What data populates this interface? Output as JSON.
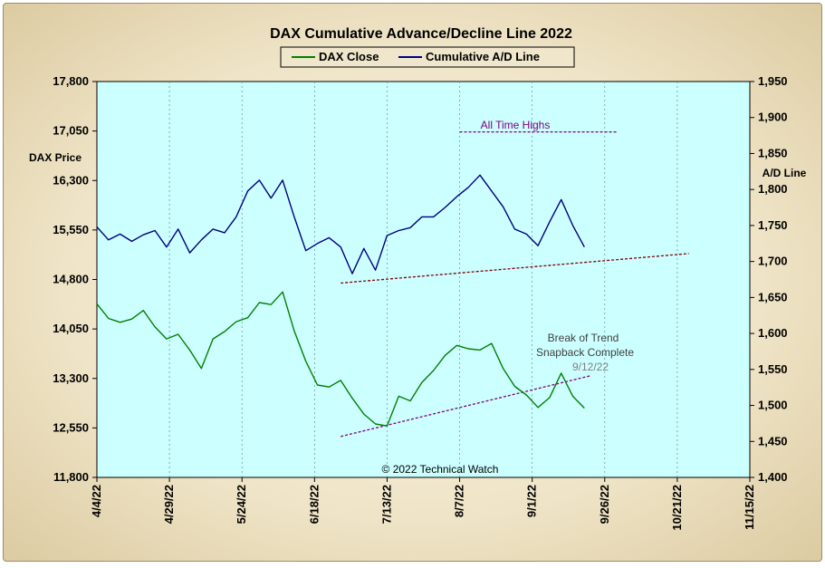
{
  "chart_data": {
    "type": "line",
    "title": "DAX Cumulative Advance/Decline Line 2022",
    "left_axis": {
      "label": "DAX Price",
      "ylim": [
        11800,
        17800
      ],
      "ticks": [
        "17,800",
        "17,050",
        "16,300",
        "15,550",
        "14,800",
        "14,050",
        "13,300",
        "12,550",
        "11,800"
      ]
    },
    "right_axis": {
      "label": "A/D Line",
      "ylim": [
        1400,
        1950
      ],
      "ticks": [
        "1,950",
        "1,900",
        "1,850",
        "1,800",
        "1,750",
        "1,700",
        "1,650",
        "1,600",
        "1,550",
        "1,500",
        "1,450",
        "1,400"
      ]
    },
    "x_axis": {
      "ticks": [
        "4/4/22",
        "4/29/22",
        "5/24/22",
        "6/18/22",
        "7/13/22",
        "8/7/22",
        "9/1/22",
        "9/26/22",
        "10/21/22",
        "11/15/22"
      ]
    },
    "legend": {
      "placement": "top-center",
      "entries": [
        "DAX Close",
        "Cumulative A/D Line"
      ]
    },
    "colors": {
      "plot_bg": "#ccffff",
      "dax": "#008000",
      "ad": "#000080",
      "trend": "#800000",
      "ath": "#800080",
      "annotation_gray": "#404040"
    },
    "series": [
      {
        "name": "DAX Close",
        "axis": "left",
        "x": [
          "4/4/22",
          "4/8/22",
          "4/12/22",
          "4/16/22",
          "4/20/22",
          "4/24/22",
          "4/28/22",
          "5/2/22",
          "5/6/22",
          "5/10/22",
          "5/14/22",
          "5/18/22",
          "5/22/22",
          "5/26/22",
          "5/30/22",
          "6/3/22",
          "6/7/22",
          "6/11/22",
          "6/15/22",
          "6/19/22",
          "6/23/22",
          "6/27/22",
          "7/1/22",
          "7/5/22",
          "7/9/22",
          "7/13/22",
          "7/17/22",
          "7/21/22",
          "7/25/22",
          "7/29/22",
          "8/2/22",
          "8/6/22",
          "8/10/22",
          "8/14/22",
          "8/18/22",
          "8/22/22",
          "8/26/22",
          "8/30/22",
          "9/3/22",
          "9/7/22",
          "9/11/22",
          "9/15/22",
          "9/19/22"
        ],
        "values": [
          14430,
          14210,
          14150,
          14200,
          14330,
          14080,
          13900,
          13970,
          13730,
          13450,
          13900,
          14010,
          14160,
          14220,
          14450,
          14420,
          14610,
          14020,
          13560,
          13200,
          13170,
          13270,
          13000,
          12760,
          12610,
          12580,
          13030,
          12960,
          13240,
          13420,
          13650,
          13800,
          13750,
          13730,
          13830,
          13450,
          13180,
          13050,
          12860,
          13010,
          13380,
          13030,
          12850
        ]
      },
      {
        "name": "Cumulative A/D Line",
        "axis": "right",
        "x": [
          "4/4/22",
          "4/8/22",
          "4/12/22",
          "4/16/22",
          "4/20/22",
          "4/24/22",
          "4/28/22",
          "5/2/22",
          "5/6/22",
          "5/10/22",
          "5/14/22",
          "5/18/22",
          "5/22/22",
          "5/26/22",
          "5/30/22",
          "6/3/22",
          "6/7/22",
          "6/11/22",
          "6/15/22",
          "6/19/22",
          "6/23/22",
          "6/27/22",
          "7/1/22",
          "7/5/22",
          "7/9/22",
          "7/13/22",
          "7/17/22",
          "7/21/22",
          "7/25/22",
          "7/29/22",
          "8/2/22",
          "8/6/22",
          "8/10/22",
          "8/14/22",
          "8/18/22",
          "8/22/22",
          "8/26/22",
          "8/30/22",
          "9/3/22",
          "9/7/22",
          "9/11/22",
          "9/15/22",
          "9/19/22"
        ],
        "values": [
          1748,
          1730,
          1738,
          1728,
          1737,
          1743,
          1720,
          1745,
          1712,
          1730,
          1745,
          1740,
          1762,
          1798,
          1813,
          1788,
          1813,
          1762,
          1715,
          1725,
          1733,
          1720,
          1683,
          1718,
          1688,
          1736,
          1743,
          1747,
          1762,
          1762,
          1775,
          1790,
          1803,
          1820,
          1798,
          1776,
          1745,
          1738,
          1722,
          1755,
          1786,
          1750,
          1720
        ]
      }
    ],
    "trendlines": [
      {
        "name": "A/D support",
        "from": {
          "x": "6/27/22",
          "y": 1670
        },
        "to": {
          "x": "10/25/22",
          "y": 1711
        }
      },
      {
        "name": "DAX trend",
        "from": {
          "x": "6/27/22",
          "y": 12420
        },
        "to": {
          "x": "9/21/22",
          "y": 13340
        }
      },
      {
        "name": "All Time Highs",
        "from": {
          "x": "8/7/22",
          "y": 1880
        },
        "to": {
          "x": "9/30/22",
          "y": 1880
        }
      }
    ],
    "annotations": [
      "All Time Highs",
      "Break of Trend",
      "Snapback Complete",
      "9/12/22",
      "© 2022 Technical Watch"
    ],
    "grid": "vertical dashed at x ticks"
  }
}
